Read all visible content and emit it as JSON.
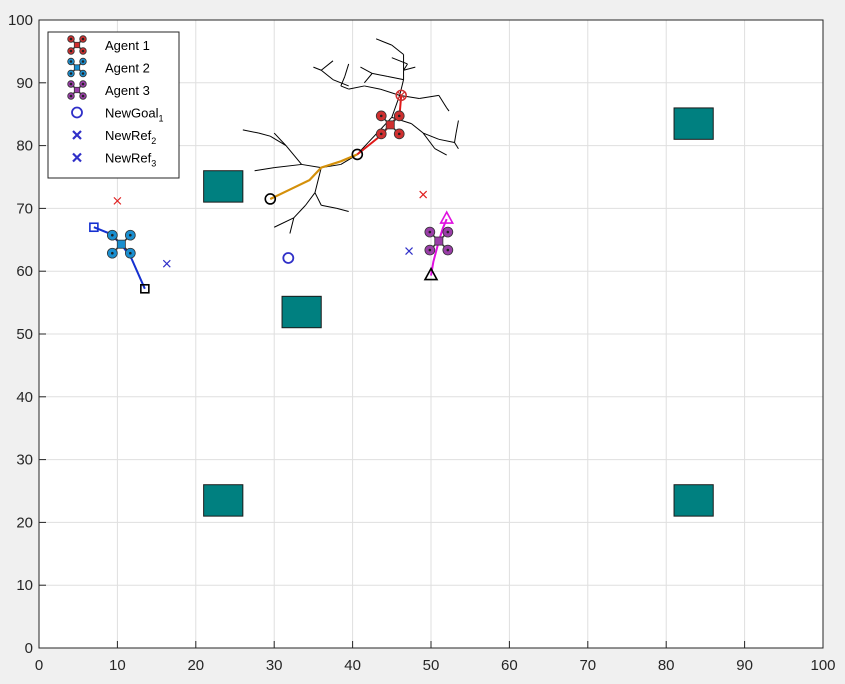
{
  "chart_data": {
    "type": "scatter",
    "xlim": [
      0,
      100
    ],
    "ylim": [
      0,
      100
    ],
    "x_ticks": [
      "0",
      "10",
      "20",
      "30",
      "40",
      "50",
      "60",
      "70",
      "80",
      "90",
      "100"
    ],
    "y_ticks": [
      "0",
      "10",
      "20",
      "30",
      "40",
      "50",
      "60",
      "70",
      "80",
      "90",
      "100"
    ],
    "grid": true,
    "legend_location": "top-left",
    "legend": [
      {
        "label": "Agent 1",
        "sub": "",
        "marker": "drone",
        "color": "#d03030"
      },
      {
        "label": "Agent 2",
        "sub": "",
        "marker": "drone",
        "color": "#1a8fd0"
      },
      {
        "label": "Agent 3",
        "sub": "",
        "marker": "drone",
        "color": "#9a3da8"
      },
      {
        "label": "NewGoal",
        "sub": "1",
        "marker": "circle",
        "color": "#3030c8"
      },
      {
        "label": "NewRef",
        "sub": "2",
        "marker": "x",
        "color": "#3030c8"
      },
      {
        "label": "NewRef",
        "sub": "3",
        "marker": "x",
        "color": "#3030c8"
      }
    ],
    "obstacles": [
      {
        "x": 23.5,
        "y": 73.5,
        "w": 5,
        "h": 5
      },
      {
        "x": 33.5,
        "y": 53.5,
        "w": 5,
        "h": 5
      },
      {
        "x": 83.5,
        "y": 83.5,
        "w": 5,
        "h": 5
      },
      {
        "x": 23.5,
        "y": 23.5,
        "w": 5,
        "h": 5
      },
      {
        "x": 83.5,
        "y": 23.5,
        "w": 5,
        "h": 5
      }
    ],
    "obstacle_color": "#008080",
    "tree_edges": [
      [
        [
          40.5,
          78.5
        ],
        [
          38.5,
          77
        ]
      ],
      [
        [
          38.5,
          77
        ],
        [
          36,
          76.5
        ]
      ],
      [
        [
          36,
          76.5
        ],
        [
          34.5,
          74.5
        ]
      ],
      [
        [
          34.5,
          74.5
        ],
        [
          32,
          73
        ]
      ],
      [
        [
          32,
          73
        ],
        [
          29.5,
          71.5
        ]
      ],
      [
        [
          36,
          76.5
        ],
        [
          33.5,
          77
        ]
      ],
      [
        [
          33.5,
          77
        ],
        [
          30,
          76.5
        ]
      ],
      [
        [
          30,
          76.5
        ],
        [
          27.5,
          76
        ]
      ],
      [
        [
          33.5,
          77
        ],
        [
          31.5,
          80
        ]
      ],
      [
        [
          31.5,
          80
        ],
        [
          29.5,
          81.5
        ]
      ],
      [
        [
          29.5,
          81.5
        ],
        [
          28,
          82
        ]
      ],
      [
        [
          28,
          82
        ],
        [
          26,
          82.5
        ]
      ],
      [
        [
          31.5,
          80
        ],
        [
          30,
          82
        ]
      ],
      [
        [
          36,
          76.5
        ],
        [
          35.2,
          72.5
        ]
      ],
      [
        [
          35.2,
          72.5
        ],
        [
          36,
          70.5
        ]
      ],
      [
        [
          36,
          70.5
        ],
        [
          38,
          70
        ]
      ],
      [
        [
          38,
          70
        ],
        [
          39.5,
          69.5
        ]
      ],
      [
        [
          35.2,
          72.5
        ],
        [
          34,
          70.5
        ]
      ],
      [
        [
          34,
          70.5
        ],
        [
          32.5,
          68.5
        ]
      ],
      [
        [
          32.5,
          68.5
        ],
        [
          32,
          66
        ]
      ],
      [
        [
          32.5,
          68.5
        ],
        [
          30,
          67
        ]
      ],
      [
        [
          40.5,
          78.5
        ],
        [
          42,
          80.5
        ]
      ],
      [
        [
          42,
          80.5
        ],
        [
          43.5,
          82.5
        ]
      ],
      [
        [
          43.5,
          82.5
        ],
        [
          45,
          84.5
        ]
      ],
      [
        [
          45,
          84.5
        ],
        [
          46,
          88
        ]
      ],
      [
        [
          46,
          88
        ],
        [
          46.5,
          90.5
        ]
      ],
      [
        [
          46.5,
          90.5
        ],
        [
          46.5,
          92
        ]
      ],
      [
        [
          46.5,
          92
        ],
        [
          47,
          93
        ]
      ],
      [
        [
          47,
          93
        ],
        [
          45,
          94
        ]
      ],
      [
        [
          46.5,
          90.5
        ],
        [
          44.5,
          91
        ]
      ],
      [
        [
          44.5,
          91
        ],
        [
          42.5,
          91.5
        ]
      ],
      [
        [
          42.5,
          91.5
        ],
        [
          41.5,
          90
        ]
      ],
      [
        [
          42.5,
          91.5
        ],
        [
          41,
          92.5
        ]
      ],
      [
        [
          46.5,
          92
        ],
        [
          48,
          92.5
        ]
      ],
      [
        [
          46.5,
          92
        ],
        [
          46.5,
          94.5
        ]
      ],
      [
        [
          46.5,
          94.5
        ],
        [
          45,
          96
        ]
      ],
      [
        [
          45,
          96
        ],
        [
          43,
          97
        ]
      ],
      [
        [
          46,
          88
        ],
        [
          43.5,
          89
        ]
      ],
      [
        [
          43.5,
          89
        ],
        [
          41.5,
          89.5
        ]
      ],
      [
        [
          41.5,
          89.5
        ],
        [
          39.5,
          89
        ]
      ],
      [
        [
          39.5,
          89
        ],
        [
          38.5,
          89.5
        ]
      ],
      [
        [
          38.5,
          89.5
        ],
        [
          39,
          91
        ]
      ],
      [
        [
          39,
          91
        ],
        [
          39.5,
          93
        ]
      ],
      [
        [
          39.5,
          89.5
        ],
        [
          37.5,
          90.5
        ]
      ],
      [
        [
          37.5,
          90.5
        ],
        [
          36,
          92
        ]
      ],
      [
        [
          36,
          92
        ],
        [
          35,
          92.5
        ]
      ],
      [
        [
          36,
          92
        ],
        [
          37.5,
          93.5
        ]
      ],
      [
        [
          46,
          88
        ],
        [
          48.5,
          87.5
        ]
      ],
      [
        [
          48.5,
          87.5
        ],
        [
          51,
          88
        ]
      ],
      [
        [
          51,
          88
        ],
        [
          52,
          86
        ]
      ],
      [
        [
          52,
          86
        ],
        [
          52.3,
          85.5
        ]
      ],
      [
        [
          45,
          84.5
        ],
        [
          47.5,
          83.5
        ]
      ],
      [
        [
          47.5,
          83.5
        ],
        [
          49,
          82
        ]
      ],
      [
        [
          49,
          82
        ],
        [
          51,
          81
        ]
      ],
      [
        [
          51,
          81
        ],
        [
          53,
          80.5
        ]
      ],
      [
        [
          53,
          80.5
        ],
        [
          53.5,
          79.5
        ]
      ],
      [
        [
          53,
          80.5
        ],
        [
          53.2,
          82
        ]
      ],
      [
        [
          53.2,
          82
        ],
        [
          53.5,
          84
        ]
      ],
      [
        [
          49,
          82
        ],
        [
          50.5,
          79.5
        ]
      ],
      [
        [
          50.5,
          79.5
        ],
        [
          52,
          78.5
        ]
      ]
    ],
    "tree_color": "#000000",
    "series": [
      {
        "name": "Agent 1",
        "color": "#d03030",
        "path_color": "#e01818",
        "center": [
          44.8,
          83.3
        ],
        "path": [
          [
            40.6,
            78.6
          ],
          [
            42,
            80
          ],
          [
            43.5,
            81.5
          ],
          [
            44.8,
            83.3
          ],
          [
            46,
            85
          ],
          [
            46.2,
            88
          ]
        ],
        "start": [
          46.2,
          88
        ],
        "start_marker": "circle-x",
        "ref": [
          49,
          72.2
        ],
        "ref_color": "#e02020"
      },
      {
        "name": "Agent 2",
        "color": "#1a8fd0",
        "path_color": "#1530d0",
        "center": [
          10.5,
          64.3
        ],
        "path": [
          [
            7,
            67
          ],
          [
            9,
            66
          ],
          [
            10.5,
            64.3
          ],
          [
            11.8,
            62
          ],
          [
            13.5,
            57.2
          ]
        ],
        "start": [
          7,
          67
        ],
        "start_marker": "square-blue",
        "end": [
          13.5,
          57.2
        ],
        "end_marker": "square-black",
        "ref": [
          10,
          71.2
        ],
        "ref_color": "#e02020"
      },
      {
        "name": "Agent 3",
        "color": "#9a3da8",
        "path_color": "#e010e0",
        "center": [
          51,
          64.8
        ],
        "path": [
          [
            50,
            59.3
          ],
          [
            50.3,
            61.5
          ],
          [
            51,
            64.8
          ],
          [
            51.5,
            66.8
          ],
          [
            52,
            68.3
          ]
        ],
        "start": [
          52,
          68.3
        ],
        "start_marker": "triangle-magenta",
        "end": [
          50,
          59.3
        ],
        "end_marker": "triangle-black",
        "ref": [
          47.2,
          63.2
        ],
        "ref_color": "#3030c8"
      }
    ],
    "plan_path": [
      [
        29.5,
        71.5
      ],
      [
        32,
        73
      ],
      [
        34.5,
        74.5
      ],
      [
        36,
        76.5
      ],
      [
        38.5,
        77.5
      ],
      [
        40.6,
        78.6
      ]
    ],
    "plan_color": "#d4900a",
    "plan_nodes": [
      [
        29.5,
        71.5
      ],
      [
        40.6,
        78.6
      ]
    ],
    "new_goal": [
      31.8,
      62.1
    ],
    "new_ref_2": [
      16.3,
      61.2
    ],
    "new_ref_3": [
      47.2,
      63.2
    ]
  }
}
